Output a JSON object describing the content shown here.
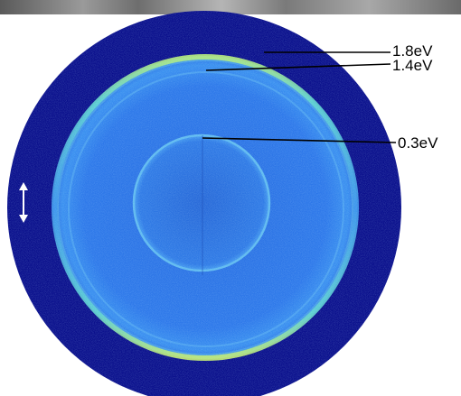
{
  "labels": {
    "ring_outer": "1.8eV",
    "ring_middle": "1.4eV",
    "ring_inner": "0.3eV"
  },
  "colors": {
    "background_disk": "#0a0f8c",
    "detector_blue": "#2a72e6",
    "ring_highlight": "#7de0c8",
    "polarization_arrow": "#ffffff"
  },
  "icons": {
    "polarization": "double-headed-vertical-arrow"
  }
}
